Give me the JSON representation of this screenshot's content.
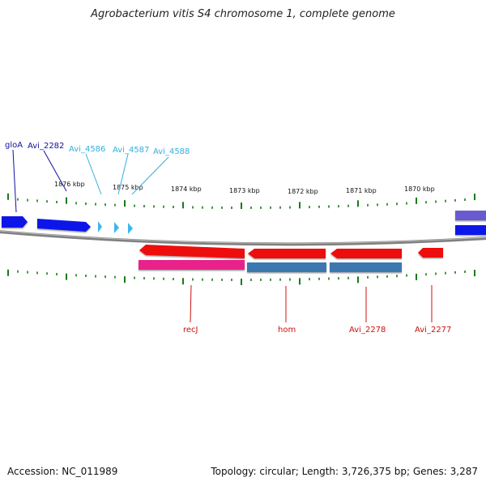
{
  "header": {
    "title": "Agrobacterium vitis S4 chromosome 1, complete genome"
  },
  "footer": {
    "accession": "Accession: NC_011989",
    "topology": "Topology: circular; Length: 3,726,375 bp; Genes: 3,287"
  },
  "colors": {
    "backbone": "#808080",
    "tick": "#1a7a1a",
    "gene_blue": "#0a18e8",
    "gene_cyan": "#3ab8ec",
    "gene_red": "#ee1010",
    "gene_pink": "#e8208a",
    "gene_steel": "#3a78b0",
    "gene_purple": "#6a5ad0",
    "label_navy": "#1010a0",
    "label_cyan": "#30b0e0",
    "label_red": "#cc1010"
  },
  "axis": {
    "unit": "kbp",
    "tick_labels": [
      "1876 kbp",
      "1875 kbp",
      "1874 kbp",
      "1873 kbp",
      "1872 kbp",
      "1871 kbp",
      "1870 kbp"
    ]
  },
  "labels": {
    "top": [
      "gloA",
      "Avi_2282",
      "Avi_4586",
      "Avi_4587",
      "Avi_4588"
    ],
    "bottom": [
      "recJ",
      "hom",
      "Avi_2278",
      "Avi_2277"
    ]
  }
}
